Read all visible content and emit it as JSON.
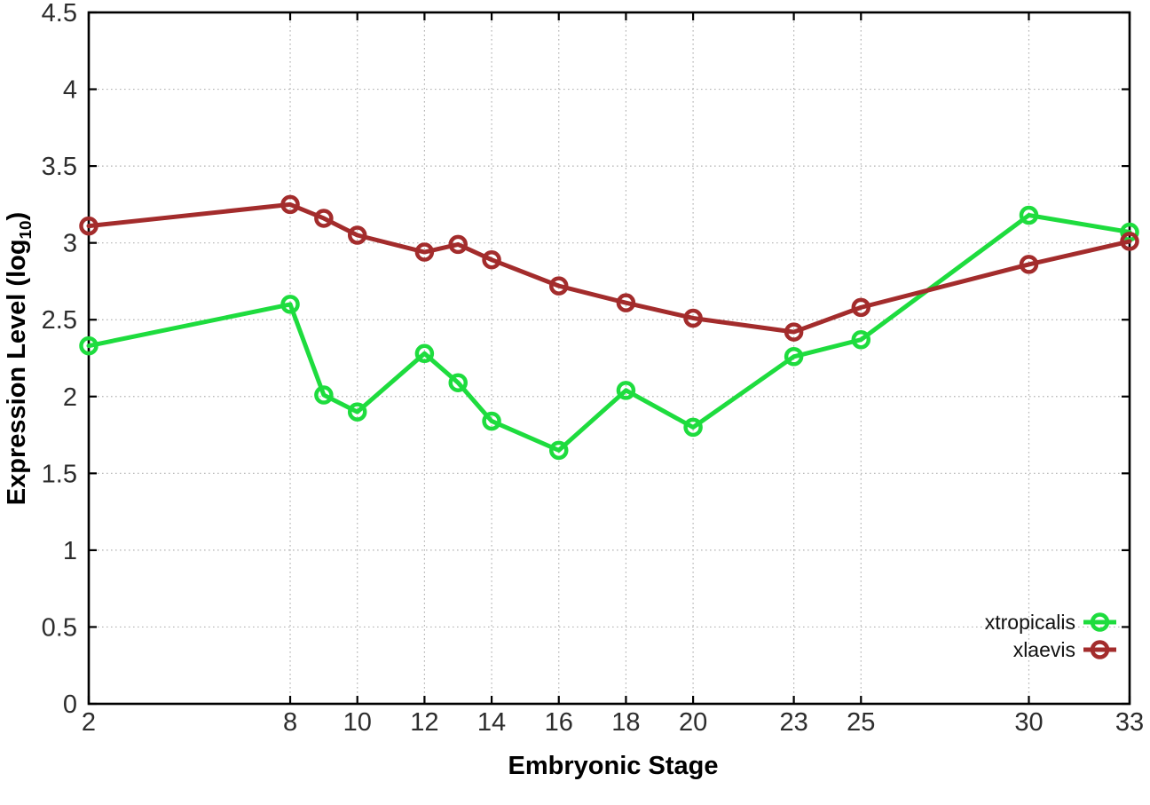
{
  "chart_data": {
    "type": "line",
    "title": "",
    "xlabel": "Embryonic Stage",
    "ylabel": "Expression Level (log10)",
    "ylabel_parts": {
      "pre": "Expression Level (log",
      "sub": "10",
      "post": ")"
    },
    "x": [
      2,
      8,
      9,
      10,
      12,
      13,
      14,
      16,
      18,
      20,
      23,
      25,
      30,
      33
    ],
    "series": [
      {
        "name": "xtropicalis",
        "color": "#1edc3e",
        "values": [
          2.33,
          2.6,
          2.01,
          1.9,
          2.28,
          2.09,
          1.84,
          1.65,
          2.04,
          1.8,
          2.26,
          2.37,
          3.18,
          3.07
        ]
      },
      {
        "name": "xlaevis",
        "color": "#a32c2c",
        "values": [
          3.11,
          3.25,
          3.16,
          3.05,
          2.94,
          2.99,
          2.89,
          2.72,
          2.61,
          2.51,
          2.42,
          2.58,
          2.86,
          3.01
        ]
      }
    ],
    "xticks": [
      2,
      8,
      10,
      12,
      14,
      16,
      18,
      20,
      23,
      25,
      30,
      33
    ],
    "yticks": [
      0,
      0.5,
      1,
      1.5,
      2,
      2.5,
      3,
      3.5,
      4,
      4.5
    ],
    "xlim": [
      2,
      33
    ],
    "ylim": [
      0,
      4.5
    ],
    "grid": true,
    "grid_style": "dotted",
    "legend_position": "inside-bottom-right",
    "marker": "open-circle",
    "colors": {
      "background": "#ffffff",
      "grid": "#b4b4b4",
      "axis": "#000000",
      "tick_label": "#2d2d2d"
    }
  }
}
